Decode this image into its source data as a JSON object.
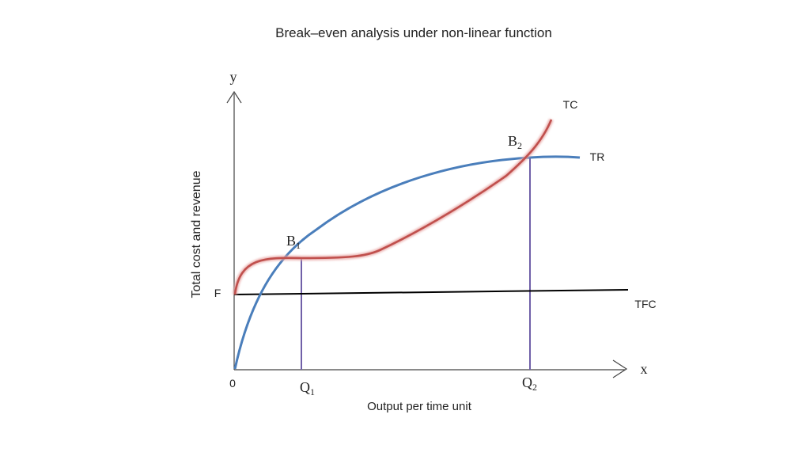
{
  "title": "Break–even analysis under non-linear function",
  "axes": {
    "y_letter": "y",
    "x_letter": "x",
    "origin": "0",
    "y_label": "Total cost and revenue",
    "x_label": "Output per time unit"
  },
  "labels": {
    "F": "F",
    "TC": "TC",
    "TR": "TR",
    "TFC": "TFC",
    "B1": {
      "base": "B",
      "sub": "1"
    },
    "B2": {
      "base": "B",
      "sub": "2"
    },
    "Q1": {
      "base": "Q",
      "sub": "1"
    },
    "Q2": {
      "base": "Q",
      "sub": "2"
    }
  },
  "colors": {
    "tr": "#4a7ebb",
    "tc": "#c0504d",
    "tfc": "#000000",
    "guides": "#7060a8",
    "axes": "#444444"
  }
}
